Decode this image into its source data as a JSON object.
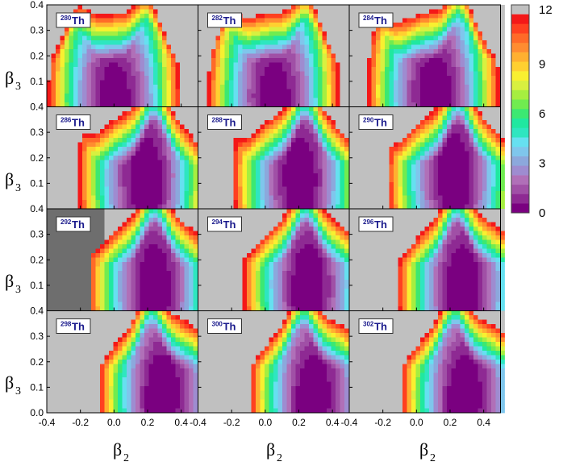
{
  "chart_data": {
    "type": "heatmap",
    "layout": "4x3 panel grid",
    "x_range": [
      -0.4,
      0.5
    ],
    "y_range": [
      0.0,
      0.4
    ],
    "x_ticks": [
      "-0.4",
      "-0.2",
      "0.0",
      "0.2",
      "0.4"
    ],
    "y_ticks": [
      "0.0",
      "0.1",
      "0.2",
      "0.3",
      "0.4"
    ],
    "y_top_tick": "0.4",
    "xlabel": {
      "main": "β",
      "sub": "2"
    },
    "ylabel": {
      "main": "β",
      "sub": "3"
    },
    "colorbar": {
      "range": [
        0,
        12
      ],
      "ticks": [
        "0",
        "3",
        "6",
        "9",
        "12"
      ],
      "colors": [
        "#7a0080",
        "#8e2a93",
        "#a050a6",
        "#b070b8",
        "#9e8cd0",
        "#8ca8dc",
        "#7fc6ec",
        "#66e0f0",
        "#2ee6c0",
        "#20e8a0",
        "#3ce872",
        "#70ec50",
        "#a6ee40",
        "#d8f040",
        "#f8f030",
        "#ffd030",
        "#ffb030",
        "#ff8c30",
        "#ff6a28",
        "#ff4020",
        "#f41818"
      ],
      "overflow_color": "#c0c0c0"
    },
    "panels": [
      {
        "nucleus": "Th",
        "mass": "280",
        "min_beta2": 0.0,
        "min_beta3": 0.03,
        "barrier_beta2": 0.2,
        "barrier_height": 0.38,
        "dark_region": false
      },
      {
        "nucleus": "Th",
        "mass": "282",
        "min_beta2": 0.05,
        "min_beta3": 0.04,
        "barrier_beta2": 0.25,
        "barrier_height": 0.4,
        "dark_region": false
      },
      {
        "nucleus": "Th",
        "mass": "284",
        "min_beta2": 0.1,
        "min_beta3": 0.06,
        "barrier_beta2": 0.26,
        "barrier_height": 0.4,
        "dark_region": false
      },
      {
        "nucleus": "Th",
        "mass": "286",
        "min_beta2": 0.18,
        "min_beta3": 0.13,
        "barrier_beta2": 0.24,
        "barrier_height": 0.4,
        "dark_region": false
      },
      {
        "nucleus": "Th",
        "mass": "288",
        "min_beta2": 0.2,
        "min_beta3": 0.13,
        "barrier_beta2": 0.24,
        "barrier_height": 0.4,
        "dark_region": false
      },
      {
        "nucleus": "Th",
        "mass": "290",
        "min_beta2": 0.22,
        "min_beta3": 0.14,
        "barrier_beta2": 0.25,
        "barrier_height": 0.4,
        "dark_region": false
      },
      {
        "nucleus": "Th",
        "mass": "292",
        "min_beta2": 0.24,
        "min_beta3": 0.1,
        "barrier_beta2": 0.24,
        "barrier_height": 0.4,
        "dark_region": true
      },
      {
        "nucleus": "Th",
        "mass": "294",
        "min_beta2": 0.26,
        "min_beta3": 0.1,
        "barrier_beta2": 0.24,
        "barrier_height": 0.4,
        "dark_region": false
      },
      {
        "nucleus": "Th",
        "mass": "296",
        "min_beta2": 0.28,
        "min_beta3": 0.1,
        "barrier_beta2": 0.24,
        "barrier_height": 0.4,
        "dark_region": false
      },
      {
        "nucleus": "Th",
        "mass": "298",
        "min_beta2": 0.3,
        "min_beta3": 0.08,
        "barrier_beta2": 0.22,
        "barrier_height": 0.4,
        "dark_region": false
      },
      {
        "nucleus": "Th",
        "mass": "300",
        "min_beta2": 0.3,
        "min_beta3": 0.07,
        "barrier_beta2": 0.22,
        "barrier_height": 0.4,
        "dark_region": false
      },
      {
        "nucleus": "Th",
        "mass": "302",
        "min_beta2": 0.3,
        "min_beta3": 0.07,
        "barrier_beta2": 0.22,
        "barrier_height": 0.4,
        "dark_region": false
      }
    ]
  }
}
